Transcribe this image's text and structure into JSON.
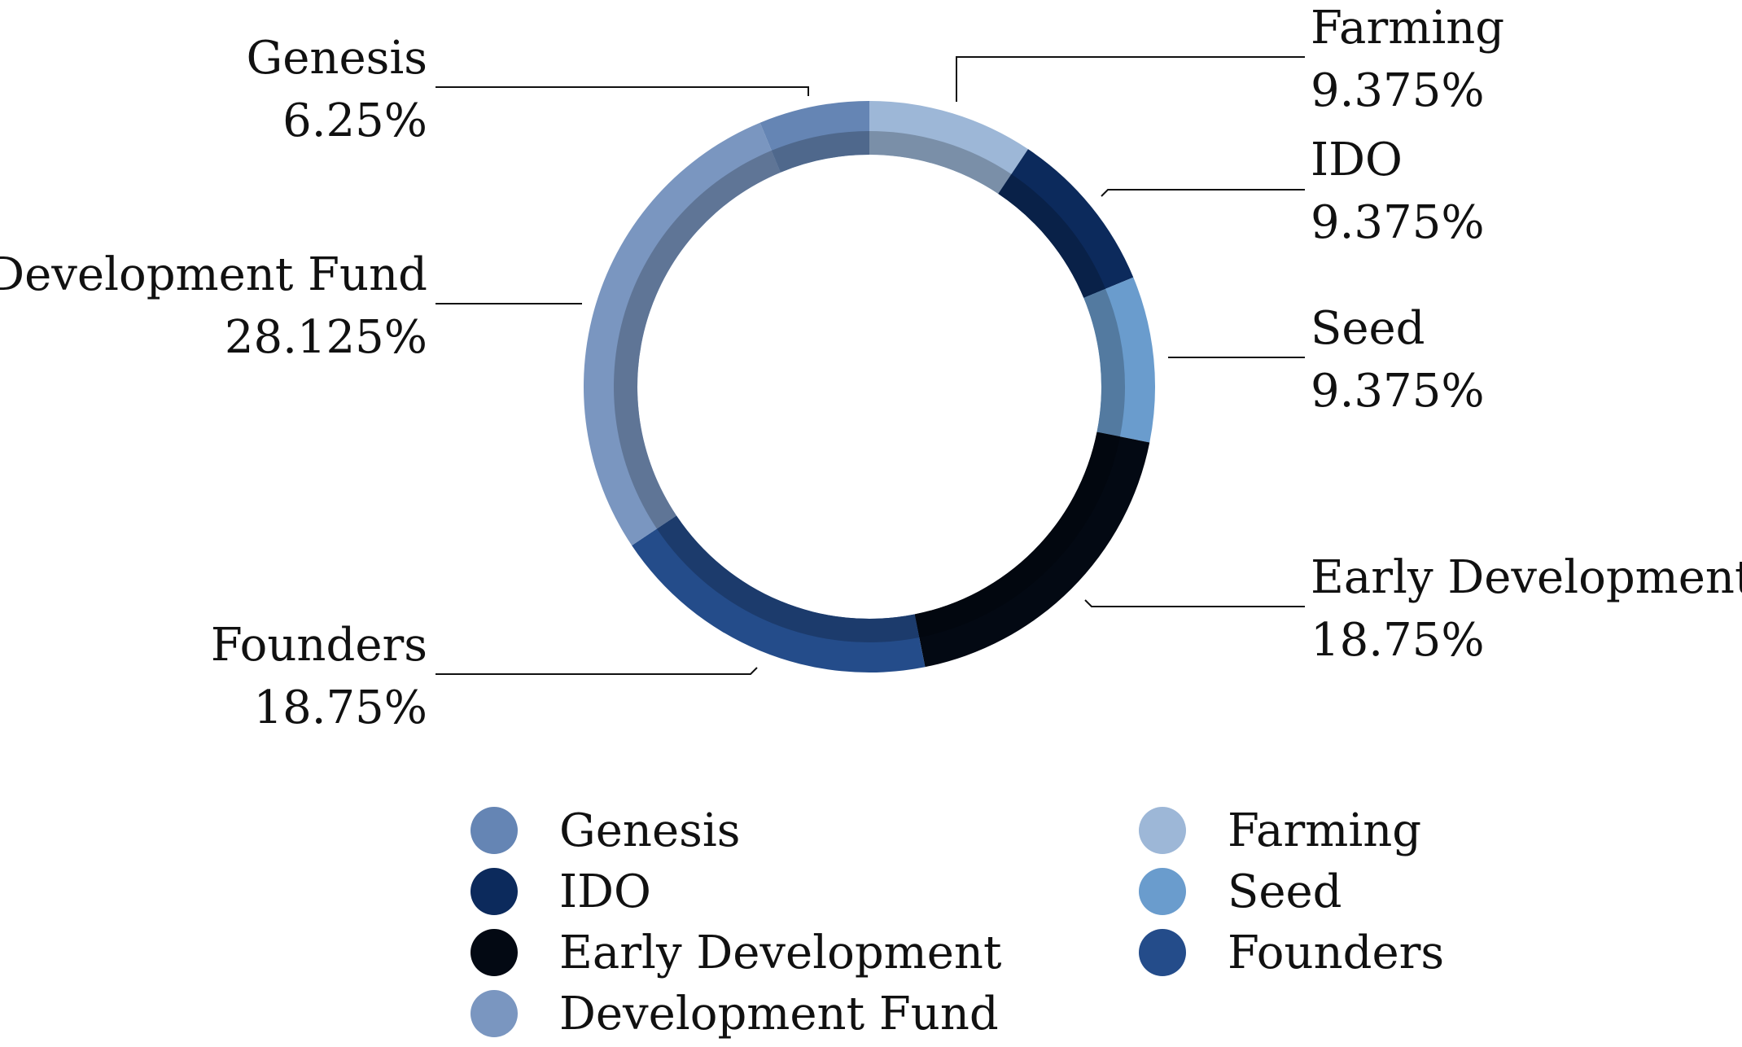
{
  "chart_data": {
    "type": "pie",
    "title": "",
    "categories": [
      "Farming",
      "IDO",
      "Seed",
      "Early Development",
      "Founders",
      "Development Fund",
      "Genesis"
    ],
    "values": [
      9.375,
      9.375,
      9.375,
      18.75,
      18.75,
      28.125,
      6.25
    ],
    "value_labels": [
      "9.375%",
      "9.375%",
      "9.375%",
      "18.75%",
      "18.75%",
      "28.125%",
      "6.25%"
    ],
    "colors": [
      "#9db7d7",
      "#0c2a5c",
      "#6a9ccd",
      "#030913",
      "#244c8a",
      "#7a96c0",
      "#6585b4"
    ],
    "donut": true,
    "start_angle_deg": 0,
    "direction": "clockwise",
    "legend": {
      "placement": "bottom",
      "columns": 2,
      "entries": [
        "Genesis",
        "IDO",
        "Early Development",
        "Development Fund",
        "Farming",
        "Seed",
        "Founders"
      ]
    }
  }
}
